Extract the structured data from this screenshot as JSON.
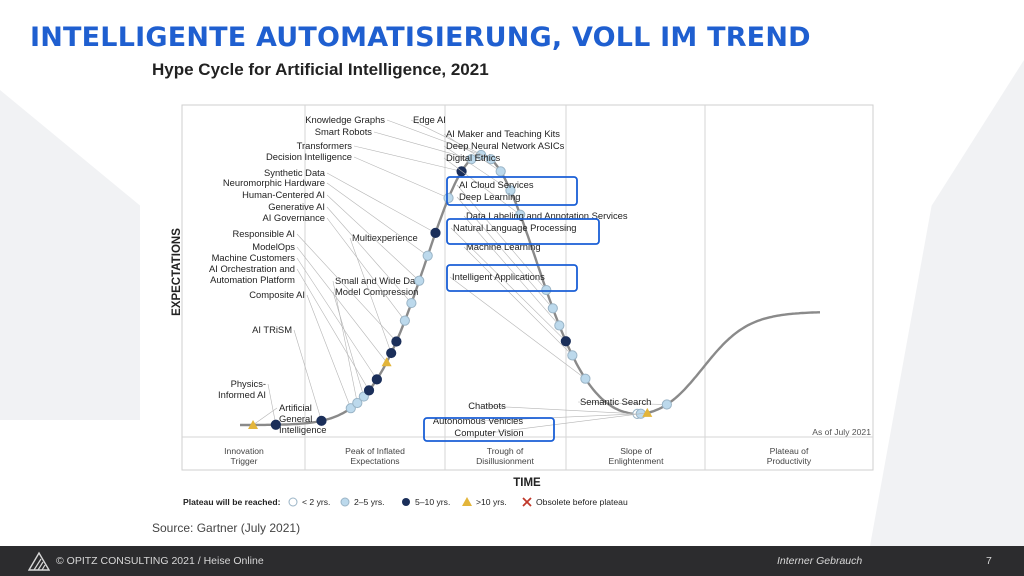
{
  "slide": {
    "title": "INTELLIGENTE AUTOMATISIERUNG, VOLL IM TREND"
  },
  "figure": {
    "title": "Hype Cycle for Artificial Intelligence, 2021",
    "source": "Source: Gartner (July 2021)",
    "y_axis_label": "EXPECTATIONS",
    "x_axis_label": "TIME",
    "as_of": "As of July 2021",
    "phases": [
      [
        "Innovation",
        "Trigger"
      ],
      [
        "Peak of Inflated",
        "Expectations"
      ],
      [
        "Trough of",
        "Disillusionment"
      ],
      [
        "Slope of",
        "Enlightenment"
      ],
      [
        "Plateau of",
        "Productivity"
      ]
    ],
    "legend": {
      "label": "Plateau will be reached:",
      "items": [
        {
          "type": "white",
          "label": "< 2 yrs."
        },
        {
          "type": "light",
          "label": "2–5 yrs."
        },
        {
          "type": "dark",
          "label": "5–10 yrs."
        },
        {
          "type": "tri",
          "label": ">10 yrs."
        },
        {
          "type": "x",
          "label": "Obsolete before plateau"
        }
      ]
    },
    "colors": {
      "curve": "#8a8a8a",
      "dark_marker": "#1b2f5a",
      "light_marker": "#bcd9ec",
      "white_marker": "#ffffff",
      "triangle_marker": "#e3b53a",
      "highlight_box": "#1a5fd6"
    },
    "technologies": [
      {
        "name": "Artificial General Intelligence",
        "lines": [
          "Artificial",
          "General",
          "Intelligence"
        ],
        "t": 0.05,
        "m": "tri",
        "side": "right"
      },
      {
        "name": "Physics-Informed AI",
        "lines": [
          "Physics-",
          "Informed AI"
        ],
        "t": 0.085,
        "m": "dark",
        "side": "left"
      },
      {
        "name": "AI TRiSM",
        "lines": [
          "AI TRiSM"
        ],
        "t": 0.155,
        "m": "dark",
        "side": "left"
      },
      {
        "name": "Composite AI",
        "lines": [
          "Composite AI"
        ],
        "t": 0.2,
        "m": "light",
        "side": "left"
      },
      {
        "name": "Small and Wide Data",
        "lines": [
          "Small and Wide Data"
        ],
        "t": 0.21,
        "m": "light",
        "side": "right"
      },
      {
        "name": "Model Compression",
        "lines": [
          "Model Compression"
        ],
        "t": 0.22,
        "m": "light",
        "side": "right"
      },
      {
        "name": "AI Orchestration and Automation Platform",
        "lines": [
          "AI Orchestration and",
          "Automation Platform"
        ],
        "t": 0.228,
        "m": "dark",
        "side": "left"
      },
      {
        "name": "Machine Customers",
        "lines": [
          "Machine Customers"
        ],
        "t": 0.24,
        "m": "dark",
        "side": "left"
      },
      {
        "name": "ModelOps",
        "lines": [
          "ModelOps"
        ],
        "t": 0.255,
        "m": "tri",
        "side": "left"
      },
      {
        "name": "Multiexperience",
        "lines": [
          "Multiexperience"
        ],
        "t": 0.262,
        "m": "dark",
        "side": "right"
      },
      {
        "name": "Responsible AI",
        "lines": [
          "Responsible AI"
        ],
        "t": 0.27,
        "m": "dark",
        "side": "left"
      },
      {
        "name": "AI Governance",
        "lines": [
          "AI Governance"
        ],
        "t": 0.283,
        "m": "light",
        "side": "left"
      },
      {
        "name": "Generative AI",
        "lines": [
          "Generative AI"
        ],
        "t": 0.293,
        "m": "light",
        "side": "left"
      },
      {
        "name": "Human-Centered AI",
        "lines": [
          "Human-Centered AI"
        ],
        "t": 0.305,
        "m": "light",
        "side": "left"
      },
      {
        "name": "Neuromorphic Hardware",
        "lines": [
          "Neuromorphic Hardware"
        ],
        "t": 0.318,
        "m": "light",
        "side": "left"
      },
      {
        "name": "Synthetic Data",
        "lines": [
          "Synthetic Data"
        ],
        "t": 0.33,
        "m": "dark",
        "side": "left"
      },
      {
        "name": "Decision Intelligence",
        "lines": [
          "Decision Intelligence"
        ],
        "t": 0.35,
        "m": "light",
        "side": "left"
      },
      {
        "name": "Transformers",
        "lines": [
          "Transformers"
        ],
        "t": 0.37,
        "m": "dark",
        "side": "left"
      },
      {
        "name": "Smart Robots",
        "lines": [
          "Smart Robots"
        ],
        "t": 0.385,
        "m": "light",
        "side": "left"
      },
      {
        "name": "Knowledge Graphs",
        "lines": [
          "Knowledge Graphs"
        ],
        "t": 0.4,
        "m": "light",
        "side": "left"
      },
      {
        "name": "Edge AI",
        "lines": [
          "Edge AI"
        ],
        "t": 0.415,
        "m": "light",
        "side": "right"
      },
      {
        "name": "AI Maker and Teaching Kits",
        "lines": [
          "AI Maker and Teaching Kits"
        ],
        "t": 0.43,
        "m": "light",
        "side": "right"
      },
      {
        "name": "Deep Neural Network ASICs",
        "lines": [
          "Deep Neural Network ASICs"
        ],
        "t": 0.445,
        "m": "light",
        "side": "right"
      },
      {
        "name": "Digital Ethics",
        "lines": [
          "Digital Ethics"
        ],
        "t": 0.46,
        "m": "light",
        "side": "right"
      },
      {
        "name": "AI Cloud Services",
        "lines": [
          "AI Cloud Services"
        ],
        "t": 0.5,
        "m": "light",
        "side": "right"
      },
      {
        "name": "Deep Learning",
        "lines": [
          "Deep Learning"
        ],
        "t": 0.51,
        "m": "light",
        "side": "right"
      },
      {
        "name": "Data Labeling and Annotation Services",
        "lines": [
          "Data Labeling and Annotation Services"
        ],
        "t": 0.52,
        "m": "light",
        "side": "right"
      },
      {
        "name": "Natural Language Processing",
        "lines": [
          "Natural Language Processing"
        ],
        "t": 0.53,
        "m": "dark",
        "side": "right"
      },
      {
        "name": "Machine Learning",
        "lines": [
          "Machine Learning"
        ],
        "t": 0.54,
        "m": "light",
        "side": "right"
      },
      {
        "name": "Intelligent Applications",
        "lines": [
          "Intelligent Applications"
        ],
        "t": 0.56,
        "m": "light",
        "side": "right"
      },
      {
        "name": "Chatbots",
        "lines": [
          "Chatbots"
        ],
        "t": 0.64,
        "m": "white",
        "side": "below"
      },
      {
        "name": "Autonomous Vehicles",
        "lines": [
          "Autonomous Vehicles"
        ],
        "t": 0.645,
        "m": "light",
        "side": "below"
      },
      {
        "name": "Computer Vision",
        "lines": [
          "Computer Vision"
        ],
        "t": 0.655,
        "m": "tri",
        "side": "below"
      },
      {
        "name": "Semantic Search",
        "lines": [
          "Semantic Search"
        ],
        "t": 0.685,
        "m": "light",
        "side": "right"
      }
    ],
    "highlighted": [
      "AI Cloud Services",
      "Deep Learning",
      "Natural Language Processing",
      "Intelligent Applications",
      "Computer Vision"
    ]
  },
  "footer": {
    "copyright": "© OPITZ CONSULTING 2021  /  Heise Online",
    "classification": "Interner Gebrauch",
    "page_number": "7"
  }
}
